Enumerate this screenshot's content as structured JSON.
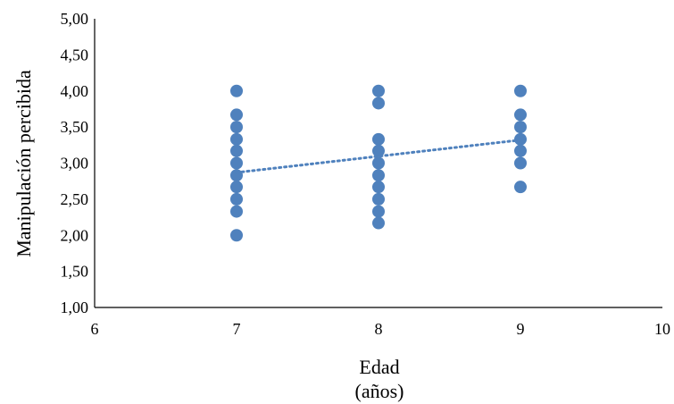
{
  "chart_data": {
    "type": "scatter",
    "xlabel": "Edad",
    "xlabel_line2": "(años)",
    "ylabel": "Manipulación percibida",
    "xlim": [
      6,
      10
    ],
    "ylim": [
      1.0,
      5.0
    ],
    "xticks": [
      "6",
      "7",
      "8",
      "9",
      "10"
    ],
    "yticks": [
      "1,00",
      "1,50",
      "2,00",
      "2,50",
      "3,00",
      "3,50",
      "4,00",
      "4,50",
      "5,00"
    ],
    "grid": false,
    "legend": "none",
    "point_color": "#4f81bd",
    "trendline_color": "#4f81bd",
    "points": [
      {
        "x": 7,
        "y": 4.0
      },
      {
        "x": 7,
        "y": 3.67
      },
      {
        "x": 7,
        "y": 3.5
      },
      {
        "x": 7,
        "y": 3.33
      },
      {
        "x": 7,
        "y": 3.17
      },
      {
        "x": 7,
        "y": 3.0
      },
      {
        "x": 7,
        "y": 2.83
      },
      {
        "x": 7,
        "y": 2.67
      },
      {
        "x": 7,
        "y": 2.5
      },
      {
        "x": 7,
        "y": 2.33
      },
      {
        "x": 7,
        "y": 2.0
      },
      {
        "x": 8,
        "y": 4.0
      },
      {
        "x": 8,
        "y": 3.83
      },
      {
        "x": 8,
        "y": 3.33
      },
      {
        "x": 8,
        "y": 3.17
      },
      {
        "x": 8,
        "y": 3.0
      },
      {
        "x": 8,
        "y": 2.83
      },
      {
        "x": 8,
        "y": 2.67
      },
      {
        "x": 8,
        "y": 2.5
      },
      {
        "x": 8,
        "y": 2.33
      },
      {
        "x": 8,
        "y": 2.17
      },
      {
        "x": 9,
        "y": 4.0
      },
      {
        "x": 9,
        "y": 3.67
      },
      {
        "x": 9,
        "y": 3.5
      },
      {
        "x": 9,
        "y": 3.33
      },
      {
        "x": 9,
        "y": 3.17
      },
      {
        "x": 9,
        "y": 3.0
      },
      {
        "x": 9,
        "y": 2.67
      }
    ],
    "trendline": {
      "x": [
        7,
        9
      ],
      "y": [
        2.87,
        3.32
      ]
    }
  }
}
